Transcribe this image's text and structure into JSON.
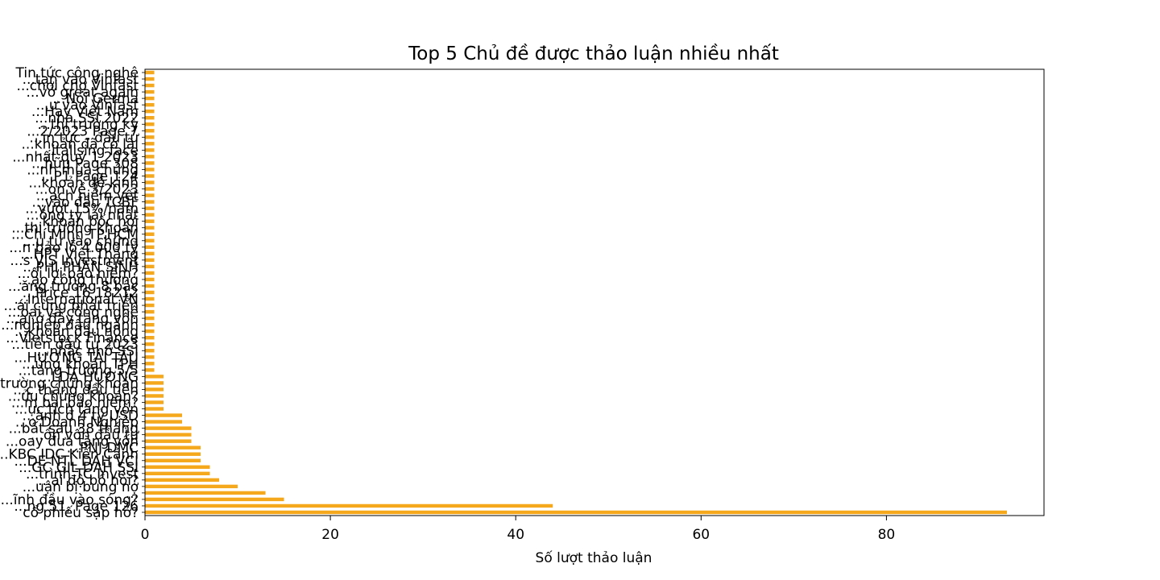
{
  "chart_data": {
    "type": "bar",
    "orientation": "horizontal",
    "title": "Top 5 Chủ đề được thảo luận nhiều nhất",
    "xlabel": "Số lượt thảo luận",
    "ylabel": "",
    "xlim": [
      0,
      97
    ],
    "x_ticks": [
      0,
      20,
      40,
      60,
      80
    ],
    "grid": false,
    "legend": "none",
    "bar_color": "#f5a81c",
    "label_order": "bottom-to-top",
    "categories": [
      "cổ phiếu sập hở?",
      "...ng 51, Page 126",
      "...ĩnh đầu vào sóng?",
      "...",
      "...uận bị bung nợ",
      "...ai độ bồ hòi?",
      "...trình TC Invest",
      "...GC GIL DAH SSI",
      "...DE NTL DAH VCI",
      "...KBC IDC Kiến Cảnh",
      "...PNJ DMC",
      "...oay đưa tăng vốn",
      "...ồn vốn đầu tư",
      "...bất sau 38 tháng",
      "...o Doanh Nghiệp",
      "...ành đ 4 tỷ USD",
      "...ực tích tăng vốn",
      "...m bài bảo hiểm?",
      "...ửu chứng khoán?",
      "...c tháng đầu tiên",
      "...ị trường chứng khoán",
      "...LDA HƯƠNG",
      "...tăng trưởng 5/5",
      "...ứng khoán TPH",
      "...HƯƠNG TÀI TÂU",
      "...nhắc nhở SSI",
      "...tiền đầu tư 2023",
      "...Vietstock Finance",
      "...khoản đầu nông",
      "...nghiệp đầu ngành",
      "...ại ở đây tăng vốn",
      "...oại và công nghệ",
      "...ái cùng phát triển",
      "...International VN",
      "...Price 16 18212",
      "...ăng trưởng 8 bậc",
      "...ạo công thương",
      "...ối lợi bảo hiểm?",
      "...PHI PHAN SINH",
      "...s VIS Investment",
      "...HPT Việt Thắng",
      "...n bảo lỗ 4.000 tỷ",
      "...u tư vào chứng",
      "...Chí Minh TP.HCM",
      "...thị trường khoán",
      "...khoản bốc hơi",
      "...ông ty lãi nhất",
      "...vượt 15%/năm",
      "...vào đầu TCBF",
      "...ạch niêm yết",
      "...on về 3/2023",
      "...khoản đề kinh",
      "...P1 Page 124",
      "...nh mùa chứng",
      "...hữu Page 308",
      "...nhất quý 1 2023",
      "...italising face",
      "...khoản đã có lãi",
      "...in tức - đầu tư",
      "...2/2023 Page 7",
      "...thị trường kỳ",
      "...nhà SSI 2022",
      "...Hay Việt Nam",
      "...ư vào Vinfast",
      "...Nói Germa",
      "...vở great again",
      "...chơi chợ Vinfast",
      "...tạn vào Vinfast",
      "Tin tức công nghệ"
    ],
    "values": [
      93,
      44,
      15,
      13,
      10,
      8,
      7,
      7,
      6,
      6,
      6,
      5,
      5,
      5,
      4,
      4,
      2,
      2,
      2,
      2,
      2,
      2,
      1,
      1,
      1,
      1,
      1,
      1,
      1,
      1,
      1,
      1,
      1,
      1,
      1,
      1,
      1,
      1,
      1,
      1,
      1,
      1,
      1,
      1,
      1,
      1,
      1,
      1,
      1,
      1,
      1,
      1,
      1,
      1,
      1,
      1,
      1,
      1,
      1,
      1,
      1,
      1,
      1,
      1,
      1,
      1,
      1,
      1,
      1
    ]
  }
}
